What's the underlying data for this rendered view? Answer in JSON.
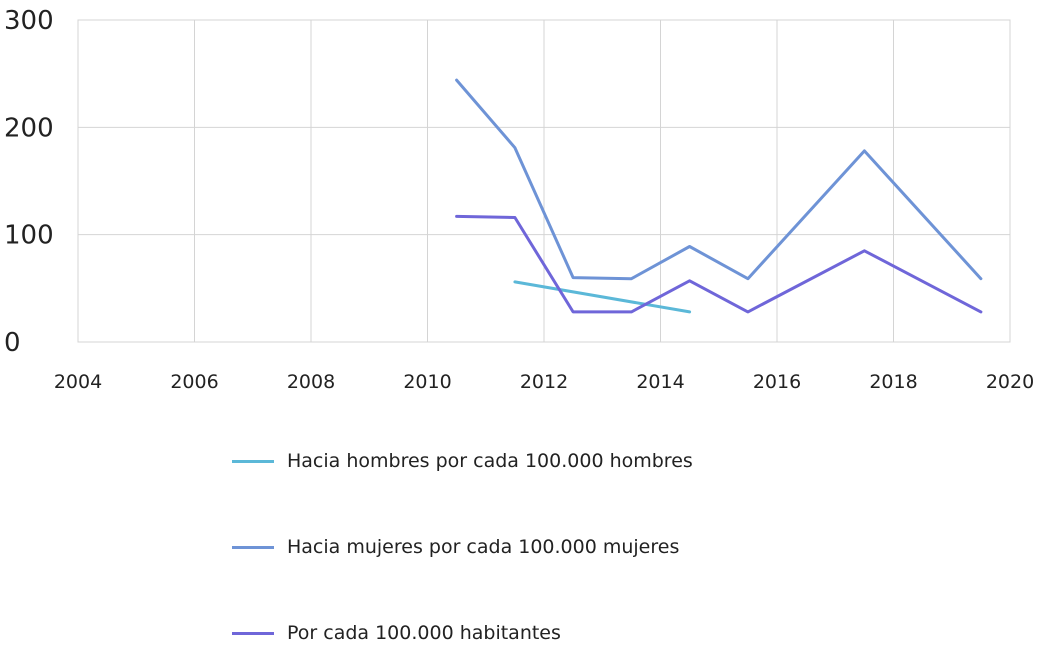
{
  "chart_data": {
    "type": "line",
    "x_ticks": [
      "2004",
      "2006",
      "2008",
      "2010",
      "2012",
      "2014",
      "2016",
      "2018",
      "2020"
    ],
    "y_ticks": [
      "0",
      "100",
      "200",
      "300"
    ],
    "xlim": [
      2004,
      2020
    ],
    "ylim": [
      0,
      300
    ],
    "grid": true,
    "legend_position": "bottom",
    "series": [
      {
        "name": "Hacia hombres por cada 100.000 hombres",
        "color": "#5bb8d8",
        "points": [
          [
            2011.5,
            56
          ],
          [
            2014.5,
            28
          ]
        ]
      },
      {
        "name": "Hacia mujeres por cada 100.000 mujeres",
        "color": "#6e93d6",
        "points": [
          [
            2010.5,
            244
          ],
          [
            2011.5,
            181
          ],
          [
            2012.5,
            60
          ],
          [
            2013.5,
            59
          ],
          [
            2014.5,
            89
          ],
          [
            2015.5,
            59
          ],
          [
            2017.5,
            178
          ],
          [
            2019.5,
            59
          ]
        ]
      },
      {
        "name": "Por cada 100.000 habitantes",
        "color": "#6f66d9",
        "points": [
          [
            2010.5,
            117
          ],
          [
            2011.5,
            116
          ],
          [
            2012.5,
            28
          ],
          [
            2013.5,
            28
          ],
          [
            2014.5,
            57
          ],
          [
            2015.5,
            28
          ],
          [
            2017.5,
            85
          ],
          [
            2019.5,
            28
          ]
        ]
      }
    ]
  }
}
